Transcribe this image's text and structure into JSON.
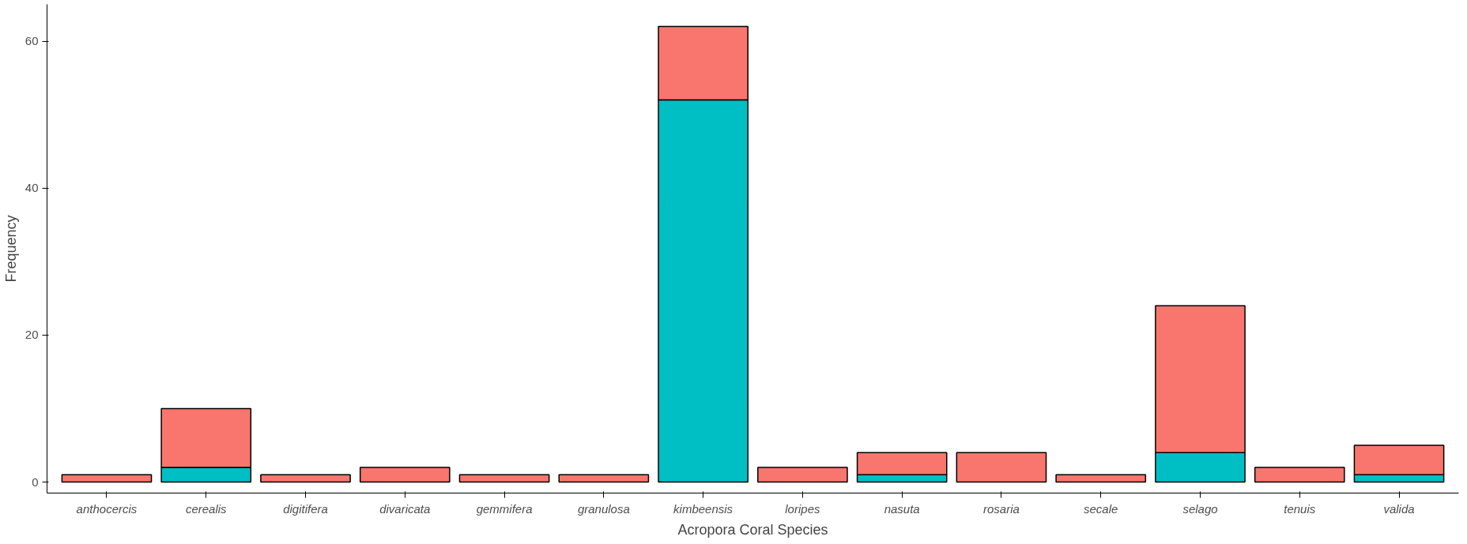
{
  "chart_data": {
    "type": "bar",
    "stacked": true,
    "xlabel": "Acropora Coral Species",
    "ylabel": "Frequency",
    "categories": [
      "anthocercis",
      "cerealis",
      "digitifera",
      "divaricata",
      "gemmifera",
      "granulosa",
      "kimbeensis",
      "loripes",
      "nasuta",
      "rosaria",
      "secale",
      "selago",
      "tenuis",
      "valida"
    ],
    "series": [
      {
        "color": "#00bfc4",
        "values": [
          0,
          2,
          0,
          0,
          0,
          0,
          52,
          0,
          1,
          0,
          0,
          4,
          0,
          1
        ]
      },
      {
        "color": "#f8766d",
        "values": [
          1,
          8,
          1,
          2,
          1,
          1,
          10,
          2,
          3,
          4,
          1,
          20,
          2,
          4
        ]
      }
    ],
    "ylim": [
      -1.5,
      65
    ],
    "yticks": [
      0,
      20,
      40,
      60
    ],
    "grid": false
  }
}
